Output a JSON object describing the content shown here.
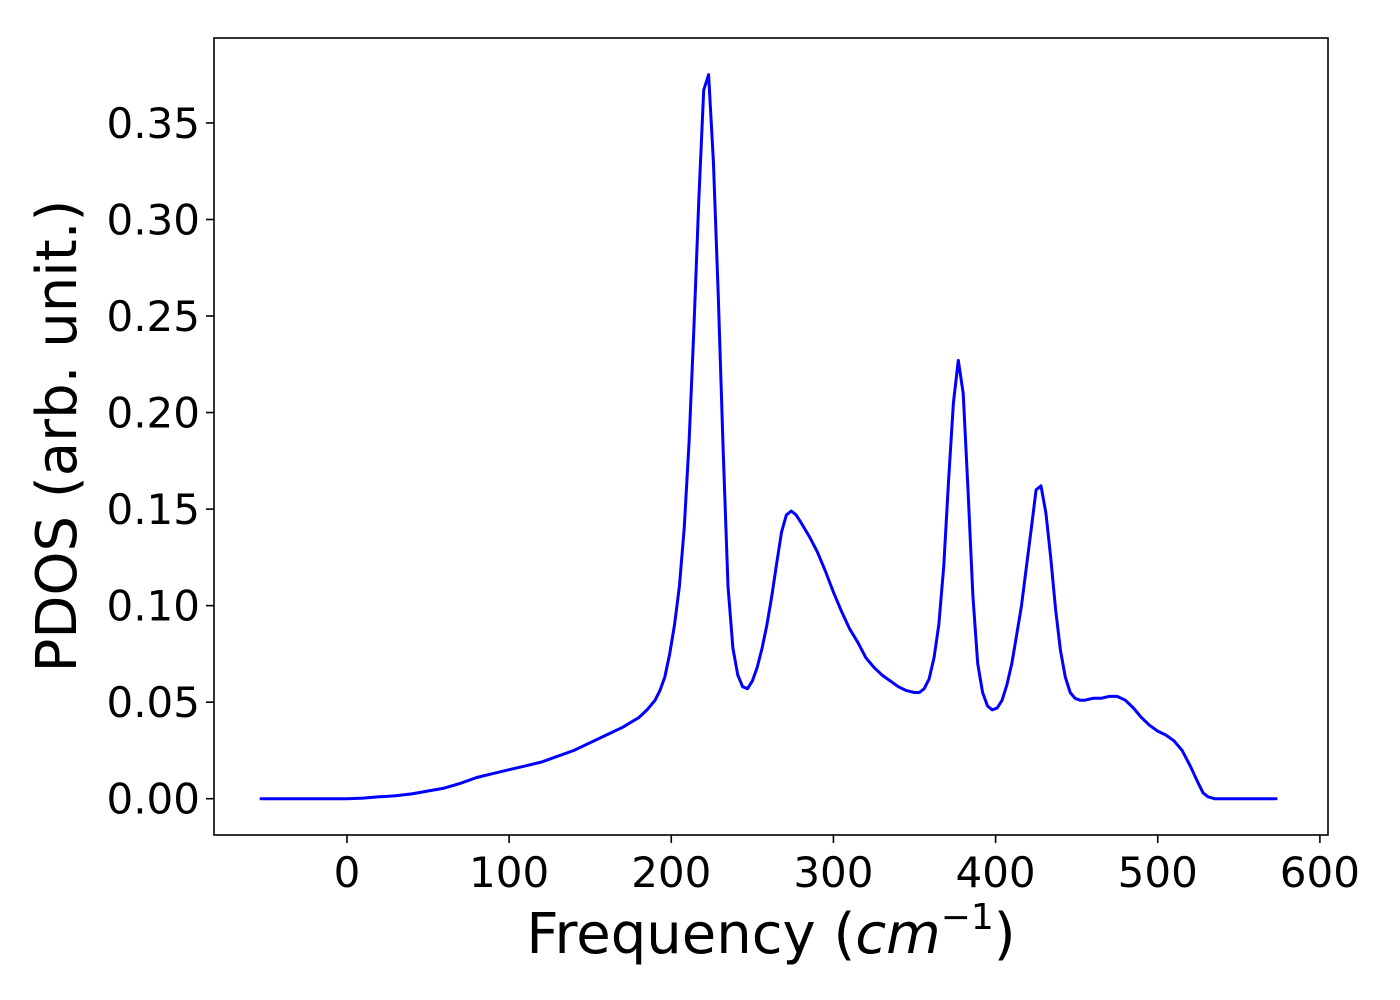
{
  "chart_data": {
    "type": "line",
    "xlabel_text": "Frequency (",
    "xlabel_math_base": "cm",
    "xlabel_math_sup": "−1",
    "xlabel_close": ")",
    "ylabel": "PDOS (arb. unit.)",
    "xlim": [
      -82,
      605
    ],
    "ylim": [
      -0.0188,
      0.394
    ],
    "xticks": [
      0,
      100,
      200,
      300,
      400,
      500,
      600
    ],
    "xtick_labels": [
      "0",
      "100",
      "200",
      "300",
      "400",
      "500",
      "600"
    ],
    "yticks": [
      0.0,
      0.05,
      0.1,
      0.15,
      0.2,
      0.25,
      0.3,
      0.35
    ],
    "ytick_labels": [
      "0.00",
      "0.05",
      "0.10",
      "0.15",
      "0.20",
      "0.25",
      "0.30",
      "0.35"
    ],
    "grid": false,
    "series": [
      {
        "color": "#0000ff",
        "x": [
          -53,
          0,
          10,
          20,
          30,
          40,
          50,
          60,
          70,
          80,
          90,
          100,
          110,
          120,
          130,
          140,
          150,
          160,
          170,
          180,
          185,
          190,
          193,
          196,
          199,
          202,
          205,
          208,
          211,
          214,
          217,
          220,
          223,
          226,
          229,
          232,
          235,
          238,
          241,
          244,
          247,
          250,
          253,
          256,
          259,
          262,
          265,
          268,
          271,
          274,
          277,
          280,
          285,
          290,
          295,
          300,
          305,
          310,
          315,
          320,
          325,
          330,
          335,
          340,
          345,
          350,
          353,
          356,
          359,
          362,
          365,
          368,
          371,
          374,
          377,
          380,
          383,
          386,
          389,
          392,
          395,
          398,
          401,
          404,
          407,
          410,
          413,
          416,
          419,
          422,
          425,
          428,
          431,
          434,
          437,
          440,
          443,
          446,
          449,
          452,
          455,
          460,
          465,
          470,
          475,
          480,
          485,
          490,
          495,
          500,
          505,
          510,
          515,
          520,
          525,
          528,
          531,
          535,
          540,
          550,
          560,
          573
        ],
        "y": [
          0.0,
          0.0,
          0.0003,
          0.001,
          0.0015,
          0.0025,
          0.004,
          0.0055,
          0.008,
          0.011,
          0.013,
          0.015,
          0.017,
          0.019,
          0.022,
          0.025,
          0.029,
          0.033,
          0.037,
          0.042,
          0.046,
          0.051,
          0.056,
          0.063,
          0.075,
          0.09,
          0.11,
          0.14,
          0.185,
          0.245,
          0.31,
          0.367,
          0.375,
          0.33,
          0.26,
          0.18,
          0.11,
          0.078,
          0.064,
          0.058,
          0.057,
          0.061,
          0.068,
          0.078,
          0.09,
          0.105,
          0.122,
          0.138,
          0.147,
          0.149,
          0.147,
          0.143,
          0.136,
          0.128,
          0.118,
          0.107,
          0.097,
          0.088,
          0.081,
          0.073,
          0.068,
          0.064,
          0.061,
          0.058,
          0.056,
          0.055,
          0.055,
          0.057,
          0.062,
          0.073,
          0.09,
          0.12,
          0.165,
          0.205,
          0.227,
          0.21,
          0.16,
          0.105,
          0.07,
          0.055,
          0.048,
          0.046,
          0.047,
          0.051,
          0.059,
          0.07,
          0.085,
          0.1,
          0.12,
          0.14,
          0.16,
          0.162,
          0.148,
          0.125,
          0.098,
          0.077,
          0.063,
          0.055,
          0.052,
          0.051,
          0.051,
          0.052,
          0.052,
          0.053,
          0.053,
          0.051,
          0.047,
          0.042,
          0.038,
          0.035,
          0.033,
          0.03,
          0.025,
          0.017,
          0.008,
          0.003,
          0.001,
          0.0,
          0.0,
          0.0,
          0.0,
          0.0
        ]
      }
    ]
  }
}
